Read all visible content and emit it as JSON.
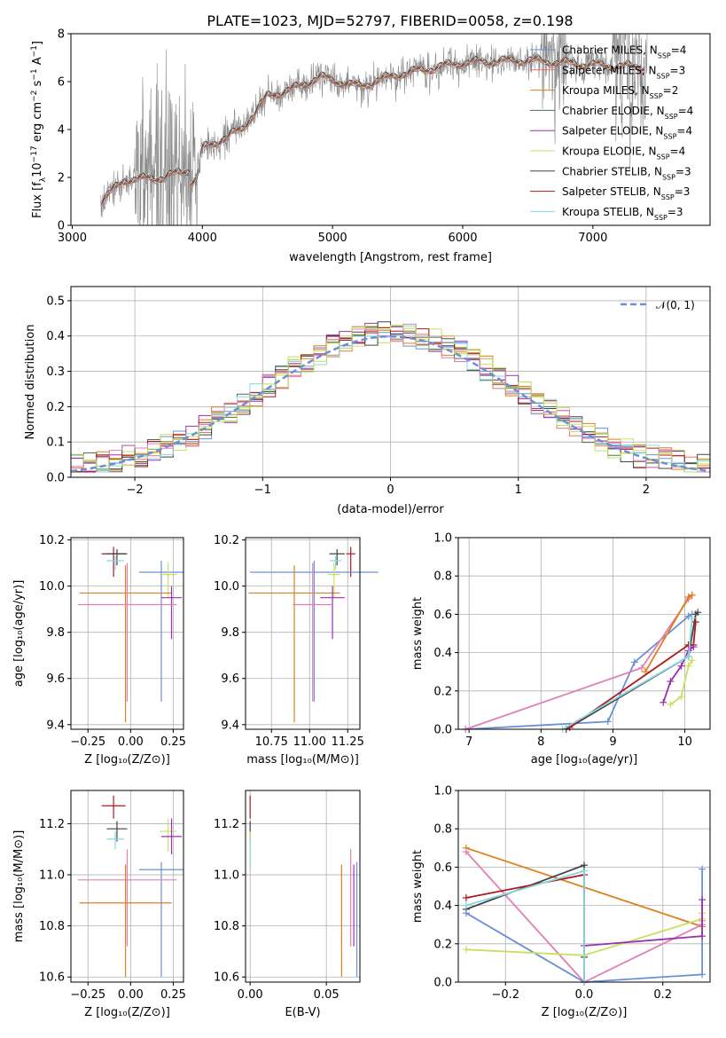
{
  "title": "PLATE=1023, MJD=52797, FIBERID=0058, z=0.198",
  "colors": {
    "Chabrier MILES": "#6a8fd8",
    "Salpeter MILES": "#e8735a",
    "Kroupa MILES": "#e07f1c",
    "Chabrier ELODIE": "#4f6f4f",
    "Salpeter ELODIE": "#9b30b0",
    "Kroupa ELODIE": "#c8e060",
    "Chabrier STELIB": "#444444",
    "Salpeter STELIB": "#b0181c",
    "Kroupa STELIB": "#88d8e0",
    "pink": "#e07fb8",
    "lime": "#b8e058",
    "data": "#888888",
    "gauss": "#6a8fd8"
  },
  "spectrum_panel": {
    "xlabel": "wavelength [Angstrom, rest frame]",
    "ylabel": "Flux [f$_\\lambda$10$^{-17}$ erg cm$^{-2}$ s$^{-1}$ A$^{-1}$]",
    "ylabel_parts": [
      "Flux [f",
      "λ",
      "10",
      "−17",
      " erg cm",
      "−2",
      " s",
      "−1",
      " A",
      "−1",
      "]"
    ],
    "xticks": [
      "3000",
      "4000",
      "5000",
      "6000",
      "7000"
    ],
    "yticks": [
      "0",
      "2",
      "4",
      "6",
      "8"
    ],
    "legend": [
      {
        "name": "Chabrier MILES",
        "nssp": "4"
      },
      {
        "name": "Salpeter MILES",
        "nssp": "3"
      },
      {
        "name": "Kroupa MILES",
        "nssp": "2"
      },
      {
        "name": "Chabrier ELODIE",
        "nssp": "4"
      },
      {
        "name": "Salpeter ELODIE",
        "nssp": "4"
      },
      {
        "name": "Kroupa ELODIE",
        "nssp": "4"
      },
      {
        "name": "Chabrier STELIB",
        "nssp": "3"
      },
      {
        "name": "Salpeter STELIB",
        "nssp": "3"
      },
      {
        "name": "Kroupa STELIB",
        "nssp": "3"
      }
    ]
  },
  "residual_panel": {
    "xlabel": "(data-model)/error",
    "ylabel": "Normed distribution",
    "xticks": [
      "−2",
      "−1",
      "0",
      "1",
      "2"
    ],
    "yticks": [
      "0.0",
      "0.1",
      "0.2",
      "0.3",
      "0.4",
      "0.5"
    ],
    "legend_label": "𝒩(0, 1)"
  },
  "small_panels": {
    "age_z": {
      "xlabel": "Z [log₁₀(Z/Z⊙)]",
      "ylabel": "age  [log₁₀(age/yr)]",
      "xticks": [
        "−0.25",
        "0.00",
        "0.25"
      ],
      "yticks": [
        "9.4",
        "9.6",
        "9.8",
        "10.0",
        "10.2"
      ]
    },
    "age_mass": {
      "xlabel": "mass [log₁₀(M/M⊙)]",
      "xticks": [
        "10.75",
        "11.00",
        "11.25"
      ],
      "yticks": [
        "9.4",
        "9.6",
        "9.8",
        "10.0",
        "10.2"
      ]
    },
    "weight_age": {
      "xlabel": "age  [log₁₀(age/yr)]",
      "ylabel": "mass weight",
      "xticks": [
        "7",
        "8",
        "9",
        "10"
      ],
      "yticks": [
        "0.0",
        "0.2",
        "0.4",
        "0.6",
        "0.8",
        "1.0"
      ]
    },
    "mass_z": {
      "xlabel": "Z [log₁₀(Z/Z⊙)]",
      "ylabel": "mass [log₁₀(M/M⊙)]",
      "xticks": [
        "−0.25",
        "0.00",
        "0.25"
      ],
      "yticks": [
        "10.6",
        "10.8",
        "11.0",
        "11.2"
      ]
    },
    "mass_ebv": {
      "xlabel": "E(B-V)",
      "xticks": [
        "0.00",
        "0.05"
      ],
      "yticks": [
        "10.6",
        "10.8",
        "11.0",
        "11.2"
      ]
    },
    "weight_z": {
      "xlabel": "Z [log₁₀(Z/Z⊙)]",
      "ylabel": "mass weight",
      "xticks": [
        "−0.2",
        "0.0",
        "0.2"
      ],
      "yticks": [
        "0.0",
        "0.2",
        "0.4",
        "0.6",
        "0.8",
        "1.0"
      ]
    }
  },
  "chart_data": [
    {
      "type": "line",
      "panel": "spectrum",
      "xlim": [
        2990,
        7900
      ],
      "ylim": [
        0,
        8
      ],
      "series_note_values": [
        [
          3220,
          1.0
        ],
        [
          3400,
          1.9
        ],
        [
          3700,
          2.0
        ],
        [
          3950,
          2.4
        ],
        [
          4000,
          3.2
        ],
        [
          4300,
          4.0
        ],
        [
          4500,
          5.4
        ],
        [
          4700,
          5.7
        ],
        [
          4900,
          6.2
        ],
        [
          5200,
          5.8
        ],
        [
          5500,
          6.3
        ],
        [
          6000,
          6.8
        ],
        [
          6500,
          6.9
        ],
        [
          7000,
          6.7
        ],
        [
          7400,
          6.6
        ]
      ]
    },
    {
      "type": "bar",
      "panel": "residual_histogram",
      "xlim": [
        -2.5,
        2.5
      ],
      "ylim": [
        0,
        0.54
      ],
      "gaussian": {
        "mu": 0,
        "sigma": 1
      }
    },
    {
      "type": "scatter",
      "panel": "age_vs_Z",
      "xlim": [
        -0.35,
        0.31
      ],
      "ylim": [
        9.38,
        10.21
      ],
      "points": [
        {
          "name": "Salpeter STELIB",
          "x": -0.1,
          "y": 10.14,
          "xerr": 0.07,
          "yerr_lo": 0.1,
          "yerr_hi": 0.03
        },
        {
          "name": "Chabrier STELIB",
          "x": -0.08,
          "y": 10.14,
          "xerr": 0.06,
          "yerr_lo": 0.05,
          "yerr_hi": 0.02
        },
        {
          "name": "Kroupa STELIB",
          "x": -0.09,
          "y": 10.11,
          "xerr": 0.05,
          "yerr_lo": 0.04,
          "yerr_hi": 0.02
        },
        {
          "name": "Chabrier MILES",
          "x": 0.18,
          "y": 10.06,
          "xerr": 0.13,
          "yerr_lo": 0.56,
          "yerr_hi": 0.05
        },
        {
          "name": "Kroupa ELODIE",
          "x": 0.22,
          "y": 10.05,
          "xerr": 0.05,
          "yerr_lo": 0.1,
          "yerr_hi": 0.05
        },
        {
          "name": "Kroupa MILES",
          "x": -0.03,
          "y": 9.97,
          "xerr": 0.27,
          "yerr_lo": 0.56,
          "yerr_hi": 0.12
        },
        {
          "name": "Salpeter ELODIE",
          "x": 0.24,
          "y": 9.95,
          "xerr": 0.06,
          "yerr_lo": 0.18,
          "yerr_hi": 0.05
        },
        {
          "name": "pink",
          "x": -0.02,
          "y": 9.92,
          "xerr": 0.29,
          "yerr_lo": 0.42,
          "yerr_hi": 0.18
        }
      ]
    },
    {
      "type": "scatter",
      "panel": "age_vs_mass",
      "xlim": [
        10.58,
        11.33
      ],
      "ylim": [
        9.38,
        10.21
      ],
      "points": [
        {
          "name": "Salpeter STELIB",
          "x": 11.27,
          "y": 10.14,
          "xerr": 0.03,
          "yerr_lo": 0.1,
          "yerr_hi": 0.03
        },
        {
          "name": "Chabrier STELIB",
          "x": 11.18,
          "y": 10.14,
          "xerr": 0.05,
          "yerr_lo": 0.05,
          "yerr_hi": 0.02
        },
        {
          "name": "Kroupa STELIB",
          "x": 11.17,
          "y": 10.11,
          "xerr": 0.04,
          "yerr_lo": 0.04,
          "yerr_hi": 0.02
        },
        {
          "name": "Chabrier MILES",
          "x": 11.03,
          "y": 10.06,
          "xerr": 0.42,
          "yerr_lo": 0.56,
          "yerr_hi": 0.05
        },
        {
          "name": "Kroupa ELODIE",
          "x": 11.16,
          "y": 10.05,
          "xerr": 0.04,
          "yerr_lo": 0.1,
          "yerr_hi": 0.05
        },
        {
          "name": "Kroupa MILES",
          "x": 10.9,
          "y": 9.97,
          "xerr": 0.3,
          "yerr_lo": 0.56,
          "yerr_hi": 0.12
        },
        {
          "name": "Salpeter ELODIE",
          "x": 11.15,
          "y": 9.95,
          "xerr": 0.08,
          "yerr_lo": 0.18,
          "yerr_hi": 0.05
        },
        {
          "name": "pink",
          "x": 11.02,
          "y": 9.92,
          "xerr": 0.13,
          "yerr_lo": 0.42,
          "yerr_hi": 0.18
        }
      ]
    },
    {
      "type": "line",
      "panel": "weight_vs_age",
      "xlim": [
        6.85,
        10.35
      ],
      "ylim": [
        0,
        1
      ],
      "series": [
        {
          "name": "Chabrier MILES",
          "x": [
            6.95,
            8.93,
            9.3,
            10.05,
            10.1
          ],
          "y": [
            0.0,
            0.04,
            0.35,
            0.59,
            0.6
          ]
        },
        {
          "name": "pink",
          "x": [
            6.95,
            9.4,
            10.05,
            10.1
          ],
          "y": [
            0.0,
            0.32,
            0.68,
            0.7
          ]
        },
        {
          "name": "Kroupa MILES",
          "x": [
            9.45,
            10.05,
            10.1
          ],
          "y": [
            0.3,
            0.69,
            0.7
          ]
        },
        {
          "name": "Chabrier STELIB",
          "x": [
            8.35,
            10.05,
            10.15,
            10.18
          ],
          "y": [
            0.0,
            0.38,
            0.6,
            0.61
          ]
        },
        {
          "name": "Salpeter STELIB",
          "x": [
            8.4,
            10.05,
            10.12,
            10.15
          ],
          "y": [
            0.01,
            0.44,
            0.44,
            0.56
          ]
        },
        {
          "name": "Salpeter ELODIE",
          "x": [
            9.7,
            9.8,
            9.95,
            10.05,
            10.12
          ],
          "y": [
            0.14,
            0.25,
            0.33,
            0.41,
            0.43
          ]
        },
        {
          "name": "Kroupa ELODIE",
          "x": [
            9.8,
            9.95,
            10.05,
            10.1
          ],
          "y": [
            0.13,
            0.17,
            0.33,
            0.36
          ]
        },
        {
          "name": "Kroupa STELIB",
          "x": [
            8.3,
            10.05,
            10.1
          ],
          "y": [
            0.0,
            0.38,
            0.58
          ]
        }
      ]
    },
    {
      "type": "scatter",
      "panel": "mass_vs_Z",
      "xlim": [
        -0.35,
        0.31
      ],
      "ylim": [
        10.58,
        11.33
      ],
      "points": [
        {
          "name": "Salpeter STELIB",
          "x": -0.1,
          "y": 11.27,
          "xerr": 0.07,
          "yerr_lo": 0.05,
          "yerr_hi": 0.04
        },
        {
          "name": "Chabrier STELIB",
          "x": -0.08,
          "y": 11.18,
          "xerr": 0.06,
          "yerr_lo": 0.05,
          "yerr_hi": 0.03
        },
        {
          "name": "Kroupa STELIB",
          "x": -0.09,
          "y": 11.14,
          "xerr": 0.05,
          "yerr_lo": 0.04,
          "yerr_hi": 0.03
        },
        {
          "name": "Kroupa ELODIE",
          "x": 0.22,
          "y": 11.17,
          "xerr": 0.05,
          "yerr_lo": 0.08,
          "yerr_hi": 0.05
        },
        {
          "name": "Salpeter ELODIE",
          "x": 0.24,
          "y": 11.15,
          "xerr": 0.06,
          "yerr_lo": 0.07,
          "yerr_hi": 0.07
        },
        {
          "name": "Chabrier MILES",
          "x": 0.18,
          "y": 11.02,
          "xerr": 0.13,
          "yerr_lo": 0.42,
          "yerr_hi": 0.03
        },
        {
          "name": "pink",
          "x": -0.02,
          "y": 10.98,
          "xerr": 0.29,
          "yerr_lo": 0.26,
          "yerr_hi": 0.12
        },
        {
          "name": "Kroupa MILES",
          "x": -0.03,
          "y": 10.89,
          "xerr": 0.27,
          "yerr_lo": 0.29,
          "yerr_hi": 0.15
        }
      ]
    },
    {
      "type": "scatter",
      "panel": "mass_vs_EBV",
      "xlim": [
        -0.003,
        0.072
      ],
      "ylim": [
        10.58,
        11.33
      ],
      "points": [
        {
          "name": "Salpeter STELIB",
          "x": 0.0,
          "y": 11.27,
          "yerr_lo": 0.05,
          "yerr_hi": 0.04
        },
        {
          "name": "Chabrier STELIB",
          "x": 0.0,
          "y": 11.18,
          "yerr_lo": 0.05,
          "yerr_hi": 0.03
        },
        {
          "name": "Kroupa ELODIE",
          "x": 0.0,
          "y": 11.12,
          "yerr_lo": 0.1,
          "yerr_hi": 0.05
        },
        {
          "name": "Kroupa STELIB",
          "x": 0.0,
          "y": 11.1,
          "yerr_lo": 0.08,
          "yerr_hi": 0.04
        },
        {
          "name": "Kroupa MILES",
          "x": 0.06,
          "y": 10.89,
          "yerr_lo": 0.29,
          "yerr_hi": 0.15
        },
        {
          "name": "pink",
          "x": 0.066,
          "y": 10.98,
          "yerr_lo": 0.26,
          "yerr_hi": 0.12
        },
        {
          "name": "Salpeter ELODIE",
          "x": 0.068,
          "y": 10.92,
          "yerr_lo": 0.2,
          "yerr_hi": 0.12
        },
        {
          "name": "Chabrier MILES",
          "x": 0.07,
          "y": 10.82,
          "yerr_lo": 0.22,
          "yerr_hi": 0.23
        }
      ]
    },
    {
      "type": "line",
      "panel": "weight_vs_Z",
      "xlim": [
        -0.32,
        0.32
      ],
      "ylim": [
        0,
        1
      ],
      "series": [
        {
          "name": "Kroupa MILES",
          "x": [
            -0.3,
            0.3
          ],
          "y": [
            0.7,
            0.29
          ]
        },
        {
          "name": "pink",
          "x": [
            -0.3,
            0.0,
            0.3,
            0.3
          ],
          "y": [
            0.68,
            0.0,
            0.3,
            0.32
          ]
        },
        {
          "name": "Chabrier STELIB",
          "x": [
            -0.3,
            0.0,
            0.0
          ],
          "y": [
            0.38,
            0.61,
            0.13
          ]
        },
        {
          "name": "Salpeter STELIB",
          "x": [
            -0.3,
            0.0,
            0.0
          ],
          "y": [
            0.44,
            0.56,
            0.0
          ]
        },
        {
          "name": "Chabrier MILES",
          "x": [
            -0.3,
            0.0,
            0.3,
            0.3
          ],
          "y": [
            0.36,
            0.0,
            0.04,
            0.59
          ]
        },
        {
          "name": "Kroupa ELODIE",
          "x": [
            -0.3,
            0.0,
            0.3,
            0.3
          ],
          "y": [
            0.17,
            0.14,
            0.33,
            0.36
          ]
        },
        {
          "name": "Salpeter ELODIE",
          "x": [
            0.0,
            0.3,
            0.3
          ],
          "y": [
            0.19,
            0.24,
            0.43
          ]
        },
        {
          "name": "Kroupa STELIB",
          "x": [
            -0.3,
            0.0,
            0.0
          ],
          "y": [
            0.4,
            0.58,
            0.0
          ]
        }
      ]
    }
  ]
}
